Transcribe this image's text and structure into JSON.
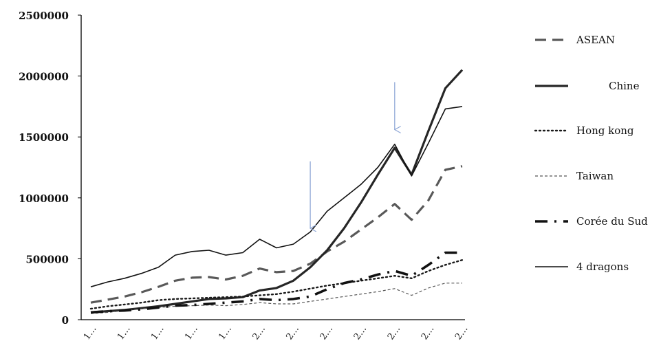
{
  "chart_data": {
    "type": "line",
    "title": "",
    "xlabel": "",
    "ylabel": "",
    "ylim": [
      0,
      2500000
    ],
    "yticks": [
      0,
      500000,
      1000000,
      1500000,
      2000000,
      2500000
    ],
    "ytick_labels": [
      "0",
      "500000",
      "1000000",
      "1500000",
      "2000000",
      "2500000"
    ],
    "grid": false,
    "legend_position": "right",
    "x_tick_labels": [
      "1…",
      "1…",
      "1…",
      "1…",
      "1…",
      "2…",
      "2…",
      "2…",
      "2…",
      "2…",
      "2…",
      "2…"
    ],
    "series": [
      {
        "name": "ASEAN",
        "style": "long-dash",
        "color": "#595959",
        "values": [
          140000,
          165000,
          190000,
          225000,
          270000,
          320000,
          345000,
          350000,
          330000,
          360000,
          420000,
          390000,
          400000,
          460000,
          560000,
          640000,
          740000,
          840000,
          950000,
          820000,
          980000,
          1230000,
          1260000
        ]
      },
      {
        "name": "Chine",
        "style": "solid-thick",
        "color": "#262626",
        "values": [
          60000,
          70000,
          80000,
          95000,
          110000,
          130000,
          150000,
          170000,
          175000,
          185000,
          240000,
          260000,
          320000,
          430000,
          570000,
          750000,
          960000,
          1190000,
          1410000,
          1190000,
          1550000,
          1900000,
          2050000
        ]
      },
      {
        "name": "Hong kong",
        "style": "dotted",
        "color": "#1a1a1a",
        "values": [
          90000,
          110000,
          125000,
          140000,
          160000,
          170000,
          175000,
          180000,
          185000,
          190000,
          200000,
          210000,
          230000,
          255000,
          280000,
          300000,
          320000,
          340000,
          360000,
          340000,
          400000,
          450000,
          490000
        ]
      },
      {
        "name": "Taiwan",
        "style": "dashed-thin",
        "color": "#555555",
        "values": [
          50000,
          60000,
          75000,
          90000,
          100000,
          110000,
          115000,
          120000,
          115000,
          125000,
          140000,
          130000,
          130000,
          150000,
          170000,
          190000,
          210000,
          230000,
          255000,
          200000,
          260000,
          300000,
          300000
        ]
      },
      {
        "name": "Corée du Sud",
        "style": "dash-dot",
        "color": "#111111",
        "values": [
          60000,
          70000,
          75000,
          85000,
          100000,
          115000,
          120000,
          130000,
          140000,
          150000,
          170000,
          160000,
          170000,
          190000,
          250000,
          300000,
          330000,
          370000,
          400000,
          360000,
          450000,
          550000,
          550000
        ]
      },
      {
        "name": "4 dragons",
        "style": "solid-thin",
        "color": "#111111",
        "values": [
          270000,
          310000,
          340000,
          380000,
          430000,
          530000,
          560000,
          570000,
          530000,
          550000,
          660000,
          590000,
          620000,
          720000,
          890000,
          1000000,
          1110000,
          1250000,
          1440000,
          1180000,
          1450000,
          1730000,
          1750000
        ]
      }
    ],
    "annotations": [
      {
        "type": "arrow",
        "color": "#8fa7d6",
        "x_index": 13,
        "y_from": 1300000,
        "y_to": 750000
      },
      {
        "type": "arrow",
        "color": "#8fa7d6",
        "x_index": 18,
        "y_from": 1950000,
        "y_to": 1560000
      }
    ]
  }
}
